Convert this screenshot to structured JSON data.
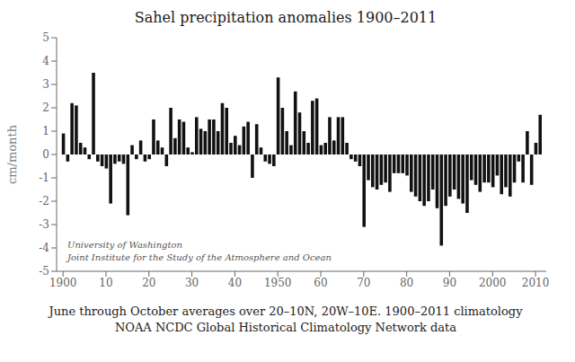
{
  "chart_data": {
    "type": "bar",
    "title": "Sahel precipitation anomalies 1900–2011",
    "y_label": "cm/month",
    "annotations": [
      "University of Washington",
      "Joint Institute for the Study of the Atmosphere and Ocean",
      "June through October averages over 20–10N, 20W–10E.  1900–2011 climatology",
      "NOAA NCDC Global Historical Climatology Network data"
    ],
    "x": [
      1900,
      1901,
      1902,
      1903,
      1904,
      1905,
      1906,
      1907,
      1908,
      1909,
      1910,
      1911,
      1912,
      1913,
      1914,
      1915,
      1916,
      1917,
      1918,
      1919,
      1920,
      1921,
      1922,
      1923,
      1924,
      1925,
      1926,
      1927,
      1928,
      1929,
      1930,
      1931,
      1932,
      1933,
      1934,
      1935,
      1936,
      1937,
      1938,
      1939,
      1940,
      1941,
      1942,
      1943,
      1944,
      1945,
      1946,
      1947,
      1948,
      1949,
      1950,
      1951,
      1952,
      1953,
      1954,
      1955,
      1956,
      1957,
      1958,
      1959,
      1960,
      1961,
      1962,
      1963,
      1964,
      1965,
      1966,
      1967,
      1968,
      1969,
      1970,
      1971,
      1972,
      1973,
      1974,
      1975,
      1976,
      1977,
      1978,
      1979,
      1980,
      1981,
      1982,
      1983,
      1984,
      1985,
      1986,
      1987,
      1988,
      1989,
      1990,
      1991,
      1992,
      1993,
      1994,
      1995,
      1996,
      1997,
      1998,
      1999,
      2000,
      2001,
      2002,
      2003,
      2004,
      2005,
      2006,
      2007,
      2008,
      2009,
      2010,
      2011
    ],
    "values": [
      0.9,
      -0.3,
      2.2,
      2.1,
      0.5,
      0.3,
      -0.2,
      3.5,
      -0.3,
      -0.5,
      -0.6,
      -2.1,
      -0.4,
      -0.3,
      -0.4,
      -2.6,
      0.4,
      -0.2,
      0.6,
      -0.3,
      -0.2,
      1.5,
      0.6,
      0.3,
      -0.5,
      2.0,
      0.7,
      1.5,
      1.4,
      0.3,
      0.1,
      1.6,
      1.1,
      1.0,
      1.5,
      1.5,
      1.0,
      2.2,
      2.0,
      0.5,
      0.8,
      0.4,
      1.2,
      1.4,
      -1.0,
      1.3,
      0.3,
      -0.3,
      -0.4,
      -0.5,
      3.3,
      2.0,
      1.0,
      0.4,
      2.7,
      1.8,
      1.0,
      0.5,
      2.3,
      2.4,
      0.4,
      0.5,
      1.6,
      0.6,
      1.6,
      1.6,
      0.5,
      -0.2,
      -0.3,
      -0.5,
      -3.1,
      -1.1,
      -1.4,
      -1.5,
      -1.3,
      -1.2,
      -1.6,
      -0.8,
      -0.8,
      -0.8,
      -0.9,
      -1.6,
      -1.8,
      -2.0,
      -2.2,
      -2.0,
      -1.5,
      -2.3,
      -3.9,
      -2.2,
      -1.8,
      -1.5,
      -1.9,
      -2.1,
      -2.5,
      -1.1,
      -1.3,
      -1.6,
      -1.2,
      -1.2,
      -1.4,
      -0.9,
      -1.7,
      -1.4,
      -1.8,
      -1.2,
      -0.3,
      -1.2,
      1.0,
      -1.3,
      0.5,
      1.7
    ],
    "color": "#111111",
    "xlim": [
      1898.5,
      2012.5
    ],
    "xticks": [
      1900,
      {
        "value": 1910,
        "label": "10"
      },
      {
        "value": 1920,
        "label": "20"
      },
      {
        "value": 1930,
        "label": "30"
      },
      {
        "value": 1940,
        "label": "40"
      },
      1950,
      {
        "value": 1960,
        "label": "60"
      },
      {
        "value": 1970,
        "label": "70"
      },
      {
        "value": 1980,
        "label": "80"
      },
      {
        "value": 1990,
        "label": "90"
      },
      2000,
      2010
    ],
    "ylim": [
      -5,
      5
    ],
    "yticks": [
      -5,
      -4,
      -3,
      -2,
      -1,
      0,
      1,
      2,
      3,
      4,
      5
    ],
    "grid": false
  }
}
